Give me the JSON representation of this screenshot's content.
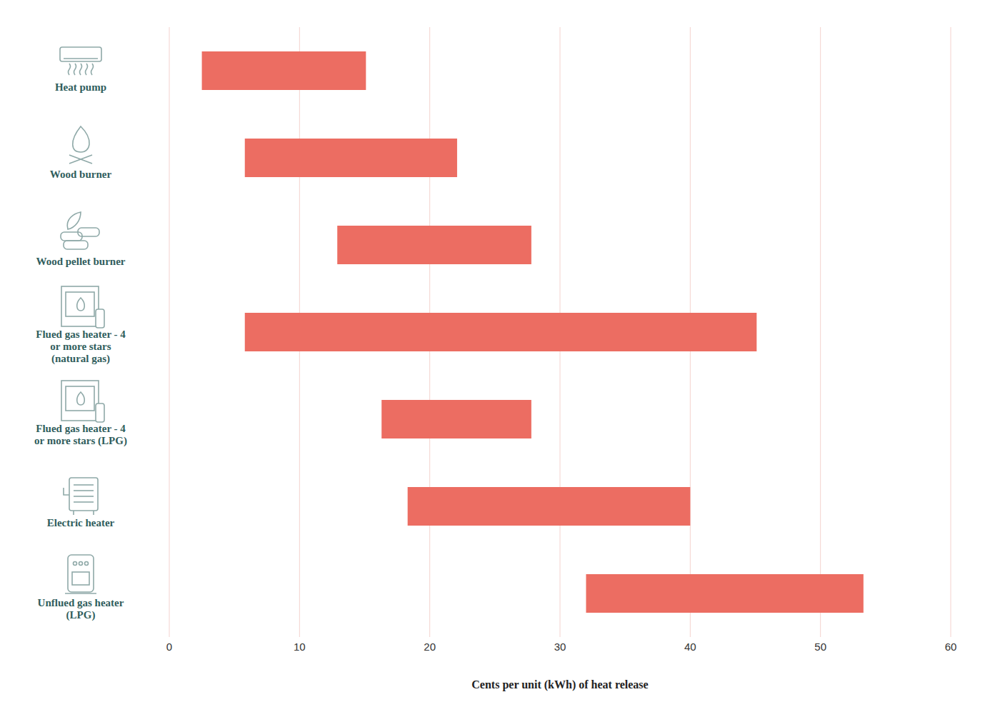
{
  "chart_data": {
    "type": "bar",
    "orientation": "horizontal",
    "categories": [
      "Heat pump",
      "Wood burner",
      "Wood pellet burner",
      "Flued gas heater - 4 or more stars (natural gas)",
      "Flued gas heater - 4 or more stars (LPG)",
      "Electric heater",
      "Unflued gas heater (LPG)"
    ],
    "values": [
      [
        2.5,
        15.1
      ],
      [
        5.8,
        22.1
      ],
      [
        12.9,
        27.8
      ],
      [
        5.8,
        45.1
      ],
      [
        16.3,
        27.8
      ],
      [
        18.3,
        40.0
      ],
      [
        32.0,
        53.3
      ]
    ],
    "x_label": "Cents per unit (kWh) of heat release",
    "color": "#ec6d62",
    "xlim": [
      0,
      60
    ],
    "xticks": [
      0,
      10,
      20,
      30,
      40,
      50,
      60
    ],
    "grid": true
  }
}
